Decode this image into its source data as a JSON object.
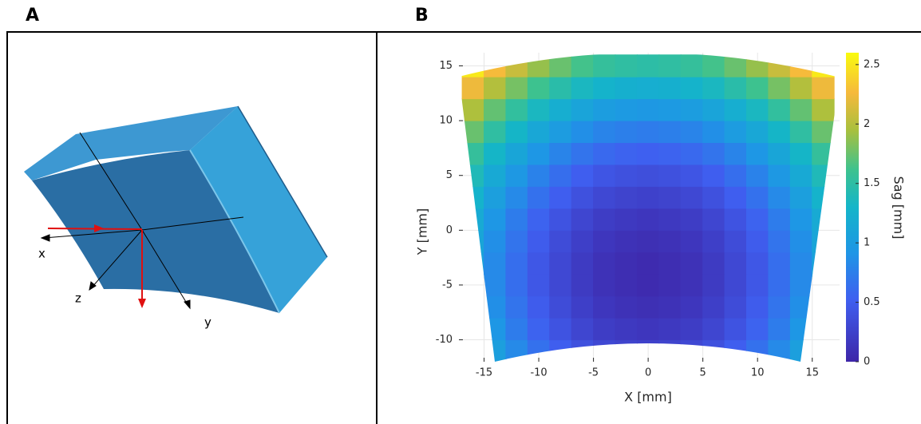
{
  "panel_a": {
    "label": "A",
    "axes": {
      "x": "x",
      "z": "z",
      "y": "y"
    }
  },
  "panel_b_label": "B",
  "chart_data": {
    "type": "heatmap",
    "x_label": "X [mm]",
    "y_label": "Y [mm]",
    "colorbar_label": "Sag [mm]",
    "colormap": "parula",
    "grid": true,
    "xlim": [
      -17.3,
      17.5
    ],
    "ylim": [
      -12,
      16.2
    ],
    "zlim": [
      0,
      2.6
    ],
    "xticks": [
      -15,
      -10,
      -5,
      0,
      5,
      10,
      15
    ],
    "yticks": [
      -10,
      -5,
      0,
      5,
      10,
      15
    ],
    "zticks": [
      0,
      0.5,
      1,
      1.5,
      2,
      2.5
    ],
    "x": [
      -16,
      -14,
      -12,
      -10,
      -8,
      -6,
      -4,
      -2,
      0,
      2,
      4,
      6,
      8,
      10,
      12,
      14,
      16
    ],
    "y": [
      -11,
      -9,
      -7,
      -5,
      -3,
      -1,
      1,
      3,
      5,
      7,
      9,
      11,
      13,
      15
    ],
    "z": [
      [
        1.27,
        1.03,
        0.83,
        0.65,
        0.51,
        0.39,
        0.31,
        0.27,
        0.25,
        0.27,
        0.31,
        0.39,
        0.51,
        0.65,
        0.83,
        1.03,
        1.27
      ],
      [
        1.17,
        0.93,
        0.73,
        0.55,
        0.41,
        0.29,
        0.21,
        0.17,
        0.15,
        0.17,
        0.21,
        0.29,
        0.41,
        0.55,
        0.73,
        0.93,
        1.17
      ],
      [
        1.11,
        0.87,
        0.67,
        0.49,
        0.35,
        0.23,
        0.15,
        0.11,
        0.09,
        0.11,
        0.15,
        0.23,
        0.35,
        0.49,
        0.67,
        0.87,
        1.11
      ],
      [
        1.07,
        0.83,
        0.63,
        0.45,
        0.31,
        0.19,
        0.11,
        0.07,
        0.05,
        0.07,
        0.11,
        0.19,
        0.31,
        0.45,
        0.63,
        0.83,
        1.07
      ],
      [
        1.07,
        0.83,
        0.63,
        0.45,
        0.31,
        0.19,
        0.11,
        0.07,
        0.05,
        0.07,
        0.11,
        0.19,
        0.31,
        0.45,
        0.63,
        0.83,
        1.07
      ],
      [
        1.11,
        0.87,
        0.67,
        0.49,
        0.35,
        0.23,
        0.15,
        0.11,
        0.09,
        0.11,
        0.15,
        0.23,
        0.35,
        0.49,
        0.67,
        0.87,
        1.11
      ],
      [
        1.17,
        0.93,
        0.73,
        0.55,
        0.41,
        0.29,
        0.21,
        0.17,
        0.15,
        0.17,
        0.21,
        0.29,
        0.41,
        0.55,
        0.73,
        0.93,
        1.17
      ],
      [
        1.27,
        1.03,
        0.83,
        0.65,
        0.51,
        0.39,
        0.31,
        0.27,
        0.25,
        0.27,
        0.31,
        0.39,
        0.51,
        0.65,
        0.83,
        1.03,
        1.27
      ],
      [
        1.39,
        1.15,
        0.95,
        0.77,
        0.63,
        0.51,
        0.43,
        0.39,
        0.37,
        0.39,
        0.43,
        0.51,
        0.63,
        0.77,
        0.95,
        1.15,
        1.39
      ],
      [
        1.55,
        1.31,
        1.11,
        0.93,
        0.79,
        0.67,
        0.59,
        0.55,
        0.53,
        0.55,
        0.59,
        0.67,
        0.79,
        0.93,
        1.11,
        1.31,
        1.55
      ],
      [
        1.75,
        1.51,
        1.31,
        1.13,
        0.99,
        0.87,
        0.79,
        0.75,
        0.73,
        0.75,
        0.79,
        0.87,
        0.99,
        1.13,
        1.31,
        1.51,
        1.75
      ],
      [
        1.97,
        1.73,
        1.53,
        1.35,
        1.21,
        1.09,
        1.01,
        0.97,
        0.95,
        0.97,
        1.01,
        1.09,
        1.21,
        1.35,
        1.53,
        1.73,
        1.97
      ],
      [
        2.23,
        1.99,
        1.79,
        1.61,
        1.47,
        1.35,
        1.27,
        1.23,
        1.21,
        1.23,
        1.27,
        1.35,
        1.47,
        1.61,
        1.79,
        1.99,
        2.23
      ],
      [
        2.51,
        2.27,
        2.07,
        1.89,
        1.75,
        1.63,
        1.55,
        1.51,
        1.49,
        1.51,
        1.55,
        1.63,
        1.75,
        1.89,
        2.07,
        2.27,
        2.51
      ]
    ]
  }
}
